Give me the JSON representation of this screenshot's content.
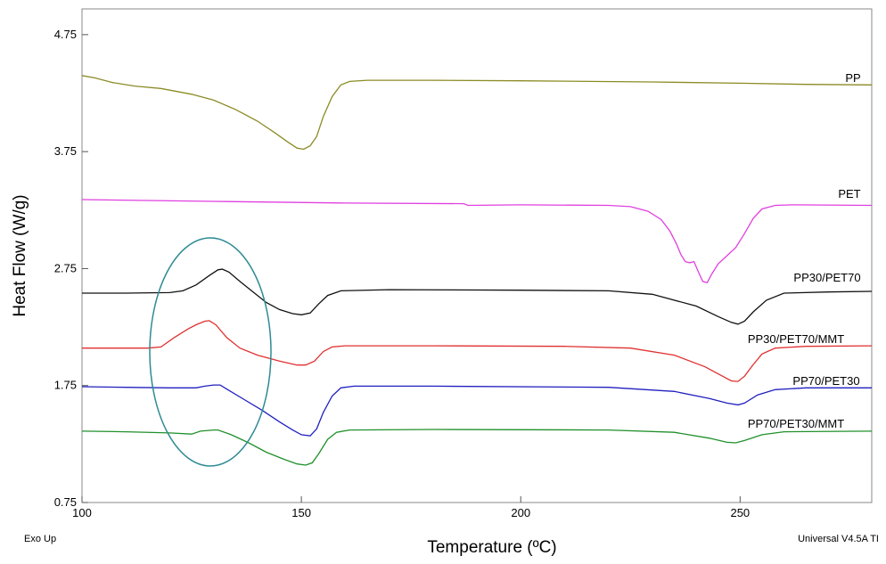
{
  "chart_data": {
    "type": "line",
    "title": "",
    "xlabel": "Temperature (ºC)",
    "ylabel": "Heat Flow (W/g)",
    "xlim": [
      100,
      280
    ],
    "ylim": [
      0.75,
      4.97
    ],
    "xticks": [
      100,
      150,
      200,
      250
    ],
    "yticks": [
      "0.75",
      "1.75",
      "2.75",
      "3.75",
      "4.75"
    ],
    "footer_left": "Exo Up",
    "footer_right": "Universal V4.5A TI",
    "series": [
      {
        "name": "PP",
        "color": "#8b8b25",
        "points": [
          [
            100,
            4.4
          ],
          [
            103,
            4.38
          ],
          [
            107,
            4.34
          ],
          [
            112,
            4.31
          ],
          [
            118,
            4.29
          ],
          [
            125,
            4.24
          ],
          [
            130,
            4.19
          ],
          [
            135,
            4.11
          ],
          [
            140,
            4.01
          ],
          [
            144,
            3.91
          ],
          [
            147,
            3.83
          ],
          [
            149,
            3.78
          ],
          [
            150.5,
            3.77
          ],
          [
            152,
            3.8
          ],
          [
            153.5,
            3.88
          ],
          [
            155,
            4.05
          ],
          [
            157,
            4.22
          ],
          [
            159,
            4.32
          ],
          [
            161,
            4.35
          ],
          [
            165,
            4.36
          ],
          [
            180,
            4.36
          ],
          [
            200,
            4.355
          ],
          [
            230,
            4.345
          ],
          [
            250,
            4.335
          ],
          [
            265,
            4.325
          ],
          [
            280,
            4.32
          ]
        ]
      },
      {
        "name": "PET",
        "color": "#e040e0",
        "points": [
          [
            100,
            3.34
          ],
          [
            130,
            3.325
          ],
          [
            160,
            3.31
          ],
          [
            187,
            3.305
          ],
          [
            188,
            3.29
          ],
          [
            200,
            3.295
          ],
          [
            220,
            3.29
          ],
          [
            225,
            3.28
          ],
          [
            229,
            3.24
          ],
          [
            232,
            3.17
          ],
          [
            234,
            3.07
          ],
          [
            235.5,
            2.96
          ],
          [
            236.5,
            2.87
          ],
          [
            237.5,
            2.81
          ],
          [
            238.5,
            2.8
          ],
          [
            239.5,
            2.81
          ],
          [
            240.5,
            2.72
          ],
          [
            241.5,
            2.64
          ],
          [
            242.5,
            2.63
          ],
          [
            243.5,
            2.7
          ],
          [
            245,
            2.79
          ],
          [
            247,
            2.86
          ],
          [
            249,
            2.93
          ],
          [
            251,
            3.05
          ],
          [
            253,
            3.18
          ],
          [
            255,
            3.26
          ],
          [
            258,
            3.29
          ],
          [
            262,
            3.295
          ],
          [
            280,
            3.29
          ]
        ]
      },
      {
        "name": "PP30/PET70",
        "color": "#111111",
        "points": [
          [
            100,
            2.54
          ],
          [
            110,
            2.54
          ],
          [
            120,
            2.545
          ],
          [
            123,
            2.56
          ],
          [
            126,
            2.61
          ],
          [
            129,
            2.69
          ],
          [
            131,
            2.74
          ],
          [
            132,
            2.745
          ],
          [
            133.5,
            2.72
          ],
          [
            136,
            2.64
          ],
          [
            139,
            2.55
          ],
          [
            142,
            2.46
          ],
          [
            145,
            2.4
          ],
          [
            148,
            2.365
          ],
          [
            150,
            2.355
          ],
          [
            152,
            2.37
          ],
          [
            154,
            2.45
          ],
          [
            156,
            2.52
          ],
          [
            159,
            2.56
          ],
          [
            170,
            2.57
          ],
          [
            200,
            2.565
          ],
          [
            220,
            2.56
          ],
          [
            230,
            2.53
          ],
          [
            240,
            2.43
          ],
          [
            245,
            2.34
          ],
          [
            248,
            2.29
          ],
          [
            249.5,
            2.275
          ],
          [
            251,
            2.3
          ],
          [
            253,
            2.38
          ],
          [
            256,
            2.48
          ],
          [
            260,
            2.54
          ],
          [
            270,
            2.55
          ],
          [
            280,
            2.555
          ]
        ]
      },
      {
        "name": "PP30/PET70/MMT",
        "color": "#e03030",
        "points": [
          [
            100,
            2.07
          ],
          [
            115,
            2.07
          ],
          [
            118,
            2.08
          ],
          [
            121,
            2.16
          ],
          [
            124,
            2.23
          ],
          [
            126,
            2.27
          ],
          [
            128,
            2.3
          ],
          [
            129,
            2.305
          ],
          [
            130.5,
            2.27
          ],
          [
            133,
            2.16
          ],
          [
            136,
            2.07
          ],
          [
            140,
            2.01
          ],
          [
            145,
            1.96
          ],
          [
            149,
            1.925
          ],
          [
            151,
            1.925
          ],
          [
            153,
            1.96
          ],
          [
            155,
            2.04
          ],
          [
            157,
            2.08
          ],
          [
            160,
            2.09
          ],
          [
            180,
            2.09
          ],
          [
            210,
            2.085
          ],
          [
            225,
            2.07
          ],
          [
            235,
            2.01
          ],
          [
            242,
            1.91
          ],
          [
            246,
            1.83
          ],
          [
            248,
            1.79
          ],
          [
            249.5,
            1.785
          ],
          [
            251,
            1.83
          ],
          [
            253,
            1.93
          ],
          [
            255,
            2.02
          ],
          [
            258,
            2.07
          ],
          [
            265,
            2.085
          ],
          [
            280,
            2.09
          ]
        ]
      },
      {
        "name": "PP70/PET30",
        "color": "#2020c0",
        "points": [
          [
            100,
            1.74
          ],
          [
            110,
            1.735
          ],
          [
            120,
            1.73
          ],
          [
            126,
            1.73
          ],
          [
            128,
            1.745
          ],
          [
            130,
            1.755
          ],
          [
            131.5,
            1.755
          ],
          [
            133,
            1.72
          ],
          [
            137,
            1.63
          ],
          [
            141,
            1.54
          ],
          [
            145,
            1.44
          ],
          [
            148,
            1.37
          ],
          [
            150,
            1.33
          ],
          [
            152,
            1.32
          ],
          [
            153.5,
            1.38
          ],
          [
            155,
            1.52
          ],
          [
            157,
            1.66
          ],
          [
            159,
            1.73
          ],
          [
            162,
            1.745
          ],
          [
            180,
            1.745
          ],
          [
            220,
            1.735
          ],
          [
            235,
            1.7
          ],
          [
            243,
            1.64
          ],
          [
            247,
            1.6
          ],
          [
            249.5,
            1.585
          ],
          [
            251,
            1.6
          ],
          [
            254,
            1.67
          ],
          [
            258,
            1.715
          ],
          [
            265,
            1.73
          ],
          [
            280,
            1.73
          ]
        ]
      },
      {
        "name": "PP70/PET30/MMT",
        "color": "#20902a",
        "points": [
          [
            100,
            1.36
          ],
          [
            110,
            1.355
          ],
          [
            120,
            1.345
          ],
          [
            125,
            1.335
          ],
          [
            127,
            1.36
          ],
          [
            130,
            1.37
          ],
          [
            131,
            1.37
          ],
          [
            134,
            1.33
          ],
          [
            138,
            1.26
          ],
          [
            142,
            1.18
          ],
          [
            146,
            1.12
          ],
          [
            149,
            1.08
          ],
          [
            151,
            1.07
          ],
          [
            152.5,
            1.09
          ],
          [
            154,
            1.17
          ],
          [
            156,
            1.29
          ],
          [
            158,
            1.35
          ],
          [
            161,
            1.37
          ],
          [
            180,
            1.375
          ],
          [
            220,
            1.37
          ],
          [
            235,
            1.35
          ],
          [
            243,
            1.3
          ],
          [
            247,
            1.265
          ],
          [
            249,
            1.26
          ],
          [
            251,
            1.28
          ],
          [
            255,
            1.33
          ],
          [
            260,
            1.355
          ],
          [
            280,
            1.36
          ]
        ]
      }
    ]
  }
}
